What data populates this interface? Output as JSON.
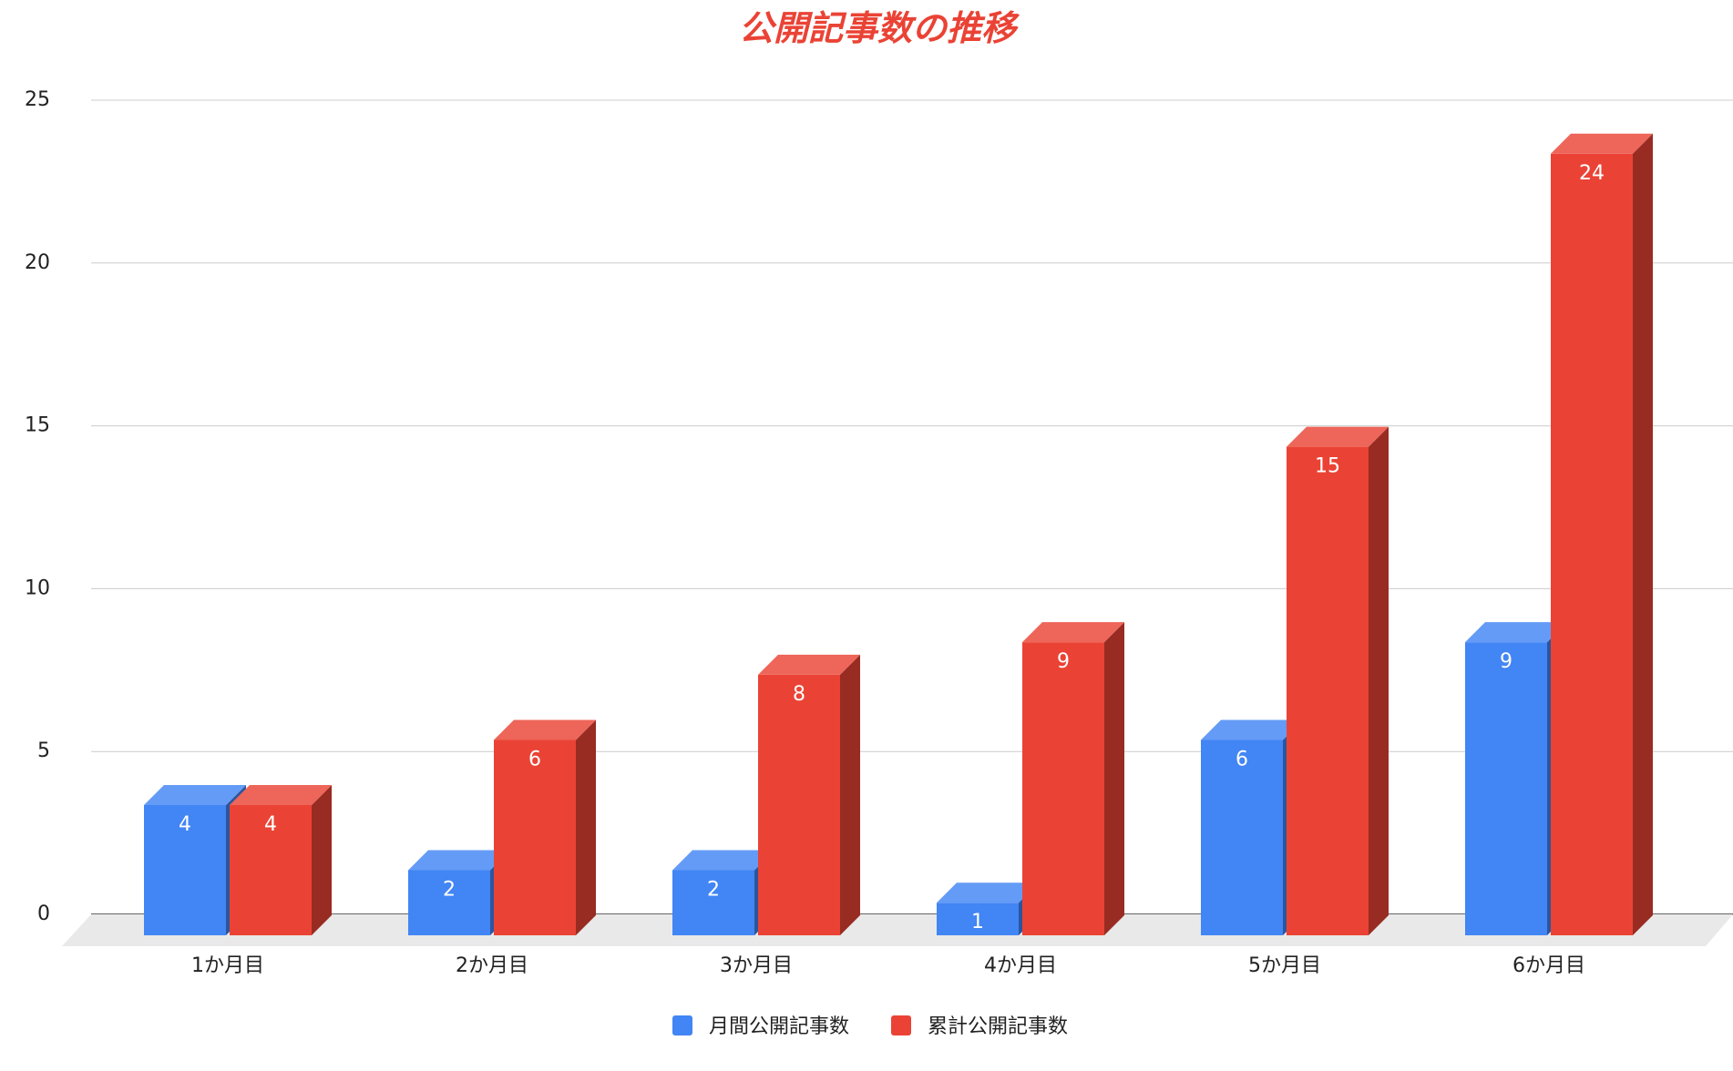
{
  "chart_data": {
    "type": "bar",
    "title": "公開記事数の推移",
    "categories": [
      "1か月目",
      "2か月目",
      "3か月目",
      "4か月目",
      "5か月目",
      "6か月目"
    ],
    "series": [
      {
        "name": "月間公開記事数",
        "values": [
          4,
          2,
          2,
          1,
          6,
          9
        ],
        "color": "#4285F4"
      },
      {
        "name": "累計公開記事数",
        "values": [
          4,
          6,
          8,
          9,
          15,
          24
        ],
        "color": "#EA4335"
      }
    ],
    "ylim": [
      0,
      25
    ],
    "yticks": [
      0,
      5,
      10,
      15,
      20,
      25
    ],
    "grid": true,
    "three_d": true,
    "data_labels": true,
    "legend_position": "bottom",
    "title_color": "#EA4335"
  }
}
